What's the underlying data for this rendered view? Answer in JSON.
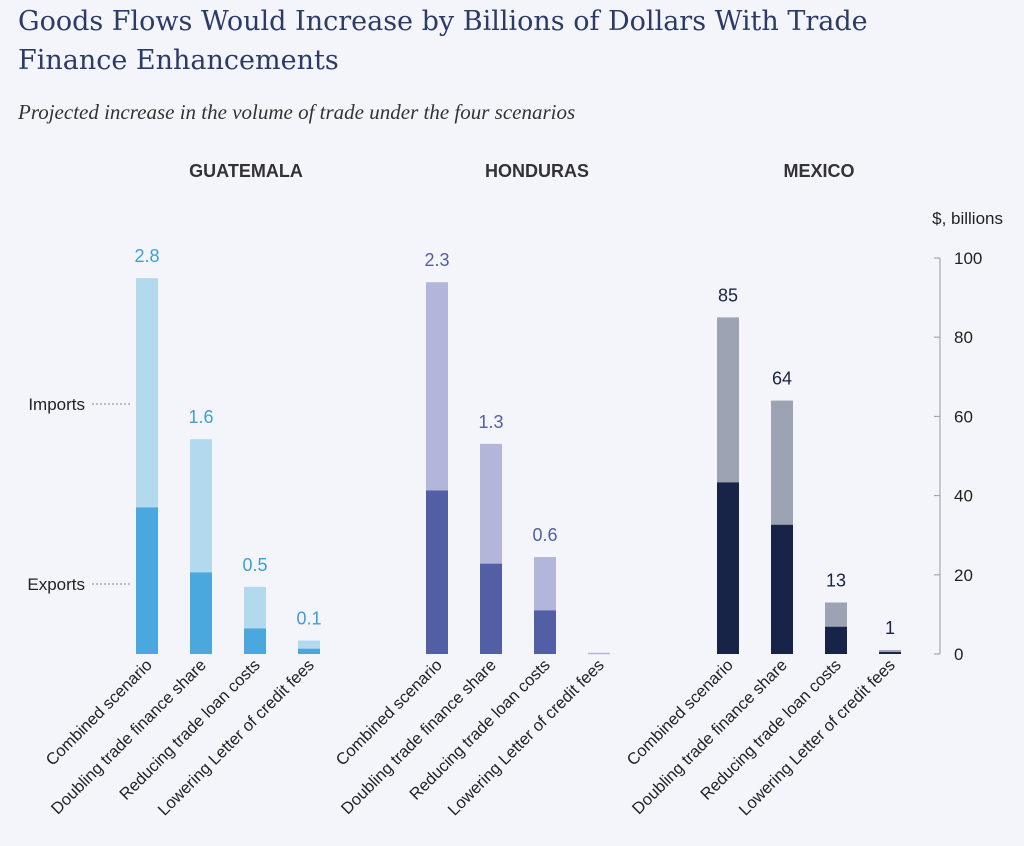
{
  "header": {
    "title": "Goods Flows Would Increase by Billions of Dollars With Trade Finance Enhancements",
    "subtitle": "Projected increase in the volume of trade under the four scenarios"
  },
  "chart_data": {
    "type": "bar",
    "stacked": true,
    "unit_label": "$, billions",
    "y_ticks": [
      0,
      20,
      40,
      60,
      80,
      100
    ],
    "ylim": [
      0,
      100
    ],
    "legend_labels": {
      "imports": "Imports",
      "exports": "Exports"
    },
    "categories": [
      "Combined scenario",
      "Doubling trade finance share",
      "Reducing trade loan costs",
      "Lowering Letter of credit fees"
    ],
    "panels": [
      {
        "name": "GUATEMALA",
        "colors": {
          "exports": "#4aa8de",
          "imports": "#b3d9ef",
          "label": "#3d9fd6"
        },
        "totals": [
          2.8,
          1.6,
          0.5,
          0.1
        ],
        "value_labels": [
          "2.8",
          "1.6",
          "0.5",
          "0.1"
        ],
        "export_fraction": [
          0.39,
          0.38,
          0.38,
          0.4
        ]
      },
      {
        "name": "HONDURAS",
        "colors": {
          "exports": "#535fa5",
          "imports": "#b2b6da",
          "label": "#535fa5"
        },
        "totals": [
          2.3,
          1.3,
          0.6,
          0.0
        ],
        "value_labels": [
          "2.3",
          "1.3",
          "0.6",
          ""
        ],
        "export_fraction": [
          0.44,
          0.43,
          0.45,
          0.5
        ]
      },
      {
        "name": "MEXICO",
        "colors": {
          "exports": "#172447",
          "imports": "#9ea3b3",
          "label": "#172447"
        },
        "totals": [
          85,
          64,
          13,
          1
        ],
        "value_labels": [
          "85",
          "64",
          "13",
          "1"
        ],
        "export_fraction": [
          0.51,
          0.51,
          0.53,
          0.5
        ]
      }
    ]
  }
}
